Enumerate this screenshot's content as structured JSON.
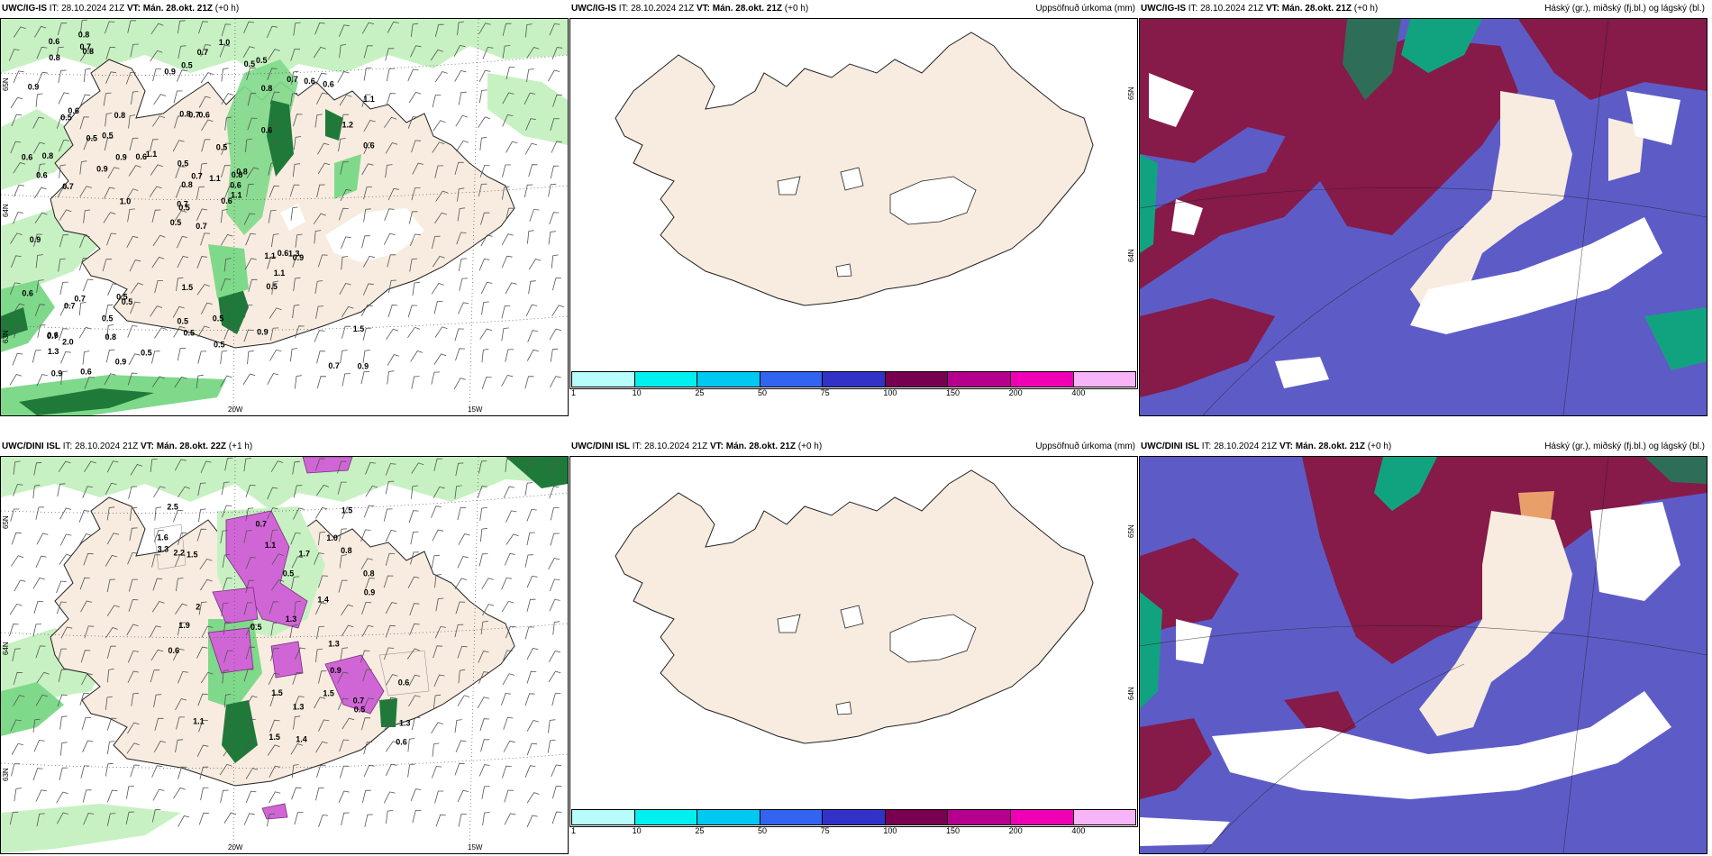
{
  "panels": [
    {
      "id": "p1",
      "model": "UWC/IG-IS",
      "it_label": "IT:",
      "it_value": "28.10.2024 21Z",
      "vt_label": "VT:",
      "vt_value": "Mán. 28.okt. 21Z",
      "lead": "(+0 h)",
      "subtitle": "",
      "lon_labels": [
        "20W",
        "15W"
      ],
      "lat_labels": [
        "65N",
        "64N",
        "63N"
      ],
      "values": [
        "0.7",
        "0.5",
        "0.5",
        "0.6",
        "0.8",
        "0.5",
        "0.5",
        "0.6",
        "0.8",
        "0.6",
        "0.8",
        "0.9",
        "0.7",
        "1.1",
        "0.5",
        "0.6",
        "0.6",
        "0.8",
        "0.5",
        "0.7",
        "1.1",
        "1.3",
        "0.8",
        "0.7",
        "0.8",
        "0.9",
        "0.6",
        "0.5",
        "0.6",
        "1.1",
        "0.6",
        "0.7",
        "0.5",
        "0.8",
        "0.8",
        "0.7",
        "0.5",
        "0.7",
        "1.5",
        "1.3",
        "1.0",
        "0.6",
        "0.9",
        "0.5",
        "0.9",
        "0.6",
        "0.6",
        "0.9",
        "0.5",
        "1.1",
        "0.7",
        "1.2",
        "0.9",
        "1.1",
        "0.9",
        "0.5",
        "0.7",
        "0.6",
        "0.5",
        "0.6",
        "0.7",
        "1.0",
        "0.8",
        "0.5",
        "0.6",
        "0.8",
        "0.5",
        "0.9",
        "0.7",
        "0.6",
        "1.5",
        "0.5",
        "0.6",
        "0.9",
        "0.7",
        "0.8",
        "0.5",
        "0.9",
        "0.5",
        "0.5",
        "1.1",
        "2.0"
      ]
    },
    {
      "id": "p2",
      "model": "UWC/IG-IS",
      "it_label": "IT:",
      "it_value": "28.10.2024 21Z",
      "vt_label": "VT:",
      "vt_value": "Mán. 28.okt. 21Z",
      "lead": "(+0 h)",
      "subtitle": "Uppsöfnuð úrkoma (mm)",
      "lat_labels": [
        "65N",
        "64N"
      ]
    },
    {
      "id": "p3",
      "model": "UWC/IG-IS",
      "it_label": "IT:",
      "it_value": "28.10.2024 21Z",
      "vt_label": "VT:",
      "vt_value": "Mán. 28.okt. 21Z",
      "lead": "(+0 h)",
      "subtitle": "Háský (gr.), miðský (fj.bl.) og lágský (bl.)"
    },
    {
      "id": "p4",
      "model": "UWC/DINI ISL",
      "it_label": "IT:",
      "it_value": "28.10.2024 21Z",
      "vt_label": "VT:",
      "vt_value": "Mán. 28.okt. 22Z",
      "lead": "(+1 h)",
      "subtitle": "",
      "lon_labels": [
        "20W",
        "15W"
      ],
      "lat_labels": [
        "65N",
        "64N",
        "63N"
      ],
      "values": [
        "0.5",
        "0.5",
        "1.6",
        "0.8",
        "1.5",
        "1.1",
        "1.4",
        "1.0",
        "2",
        "0.6",
        "0.7",
        "1.7",
        "1.3",
        "2.2",
        "1.3",
        "0.8",
        "0.6",
        "1.5",
        "1.3",
        "0.9",
        "3.3",
        "1.5",
        "1.4",
        "0.5",
        "0.9",
        "1.5",
        "2.5",
        "0.6",
        "1.3",
        "0.7",
        "1.1",
        "1.9",
        "1.5"
      ]
    },
    {
      "id": "p5",
      "model": "UWC/DINI ISL",
      "it_label": "IT:",
      "it_value": "28.10.2024 21Z",
      "vt_label": "VT:",
      "vt_value": "Mán. 28.okt. 21Z",
      "lead": "(+0 h)",
      "subtitle": "Uppsöfnuð úrkoma (mm)",
      "lat_labels": [
        "65N",
        "64N"
      ]
    },
    {
      "id": "p6",
      "model": "UWC/DINI ISL",
      "it_label": "IT:",
      "it_value": "28.10.2024 21Z",
      "vt_label": "VT:",
      "vt_value": "Mán. 28.okt. 21Z",
      "lead": "(+0 h)",
      "subtitle": "Háský (gr.), miðský (fj.bl.) og lágský (bl.)"
    }
  ],
  "precip_legend": {
    "ticks": [
      "1",
      "10",
      "25",
      "50",
      "75",
      "100",
      "150",
      "200",
      "400"
    ],
    "colors": [
      "#b8fcfc",
      "#00f0f0",
      "#00c8f0",
      "#3264f0",
      "#3232c8",
      "#780050",
      "#b4008c",
      "#f000b4",
      "#f8b4f8"
    ]
  },
  "colors": {
    "land": "#f7ecdf",
    "green_light": "#c7f1c2",
    "green_mid": "#7fd98a",
    "green_dark": "#1f7a3a",
    "magenta": "#d066d6",
    "cloud_low": "#5d5cc7",
    "cloud_mid": "#861a49",
    "cloud_high": "#11a37f"
  }
}
